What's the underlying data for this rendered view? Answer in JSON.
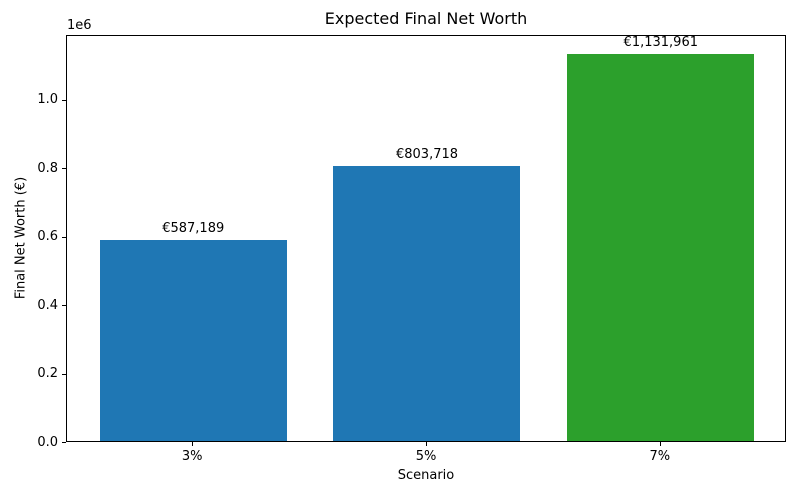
{
  "chart_data": {
    "type": "bar",
    "title": "Expected Final Net Worth",
    "xlabel": "Scenario",
    "ylabel": "Final Net Worth (€)",
    "offset_text": "1e6",
    "categories": [
      "3%",
      "5%",
      "7%"
    ],
    "values": [
      587189,
      803718,
      1131961
    ],
    "bar_labels": [
      "€587,189",
      "€803,718",
      "€1,131,961"
    ],
    "bar_colors": [
      "#1f77b4",
      "#1f77b4",
      "#2ca02c"
    ],
    "ytick_values": [
      0.0,
      0.2,
      0.4,
      0.6,
      0.8,
      1.0
    ],
    "ytick_labels": [
      "0.0",
      "0.2",
      "0.4",
      "0.6",
      "0.8",
      "1.0"
    ],
    "ytick_multiplier": 1000000,
    "ylim": [
      0,
      1190000
    ],
    "xlim": [
      -0.54,
      2.54
    ],
    "bar_width": 0.8,
    "grid": false,
    "legend": null,
    "spine_color": "#000000",
    "background_color": "#ffffff"
  }
}
